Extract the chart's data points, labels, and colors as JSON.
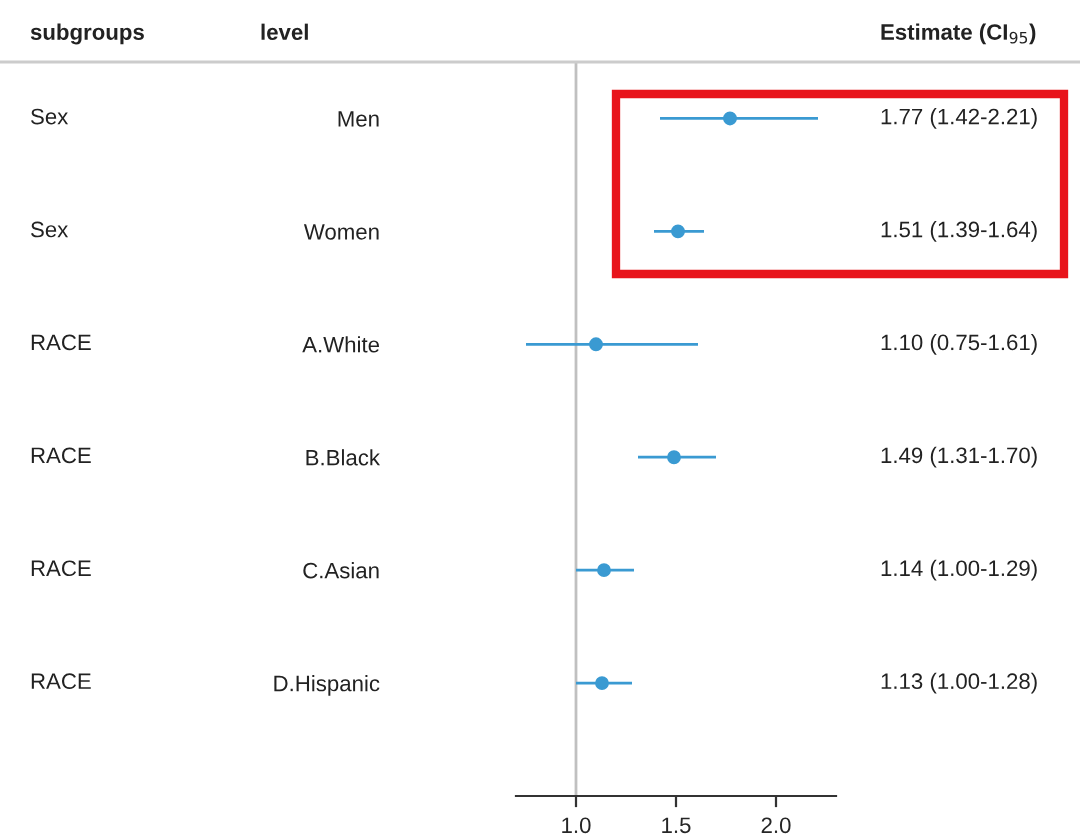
{
  "chart_data": {
    "type": "scatter",
    "orientation": "horizontal",
    "categories": [
      "Men",
      "Women",
      "A.White",
      "B.Black",
      "C.Asian",
      "D.Hispanic"
    ],
    "y2_categories": [
      "Sex",
      "Sex",
      "RACE",
      "RACE",
      "RACE",
      "RACE"
    ],
    "series": [
      {
        "color": "#3a9ad2",
        "values": [
          1.77,
          1.51,
          1.1,
          1.49,
          1.14,
          1.13
        ],
        "errors": [
          [
            1.42,
            2.21
          ],
          [
            1.39,
            1.64
          ],
          [
            0.75,
            1.61
          ],
          [
            1.31,
            1.7
          ],
          [
            1.0,
            1.29
          ],
          [
            1.0,
            1.28
          ]
        ],
        "value_labels": [
          "1.77 (1.42-2.21)",
          "1.51 (1.39-1.64)",
          "1.10 (0.75-1.61)",
          "1.49 (1.31-1.70)",
          "1.14 (1.00-1.29)",
          "1.13 (1.00-1.28)"
        ]
      }
    ],
    "annotations": [
      "subgroups",
      "level",
      "Estimate (CI$_{95}$)"
    ],
    "xlim": [
      0.7,
      2.3
    ],
    "xticks": [
      {
        "value": 1.0,
        "label": "1.0"
      },
      {
        "value": 1.5,
        "label": "1.5"
      },
      {
        "value": 2.0,
        "label": "2.0"
      }
    ],
    "ref_lines": [
      {
        "axis": "x",
        "value": 1,
        "color": "#c0c0c0"
      }
    ],
    "marker": "circle",
    "grid": false,
    "legend": false
  }
}
